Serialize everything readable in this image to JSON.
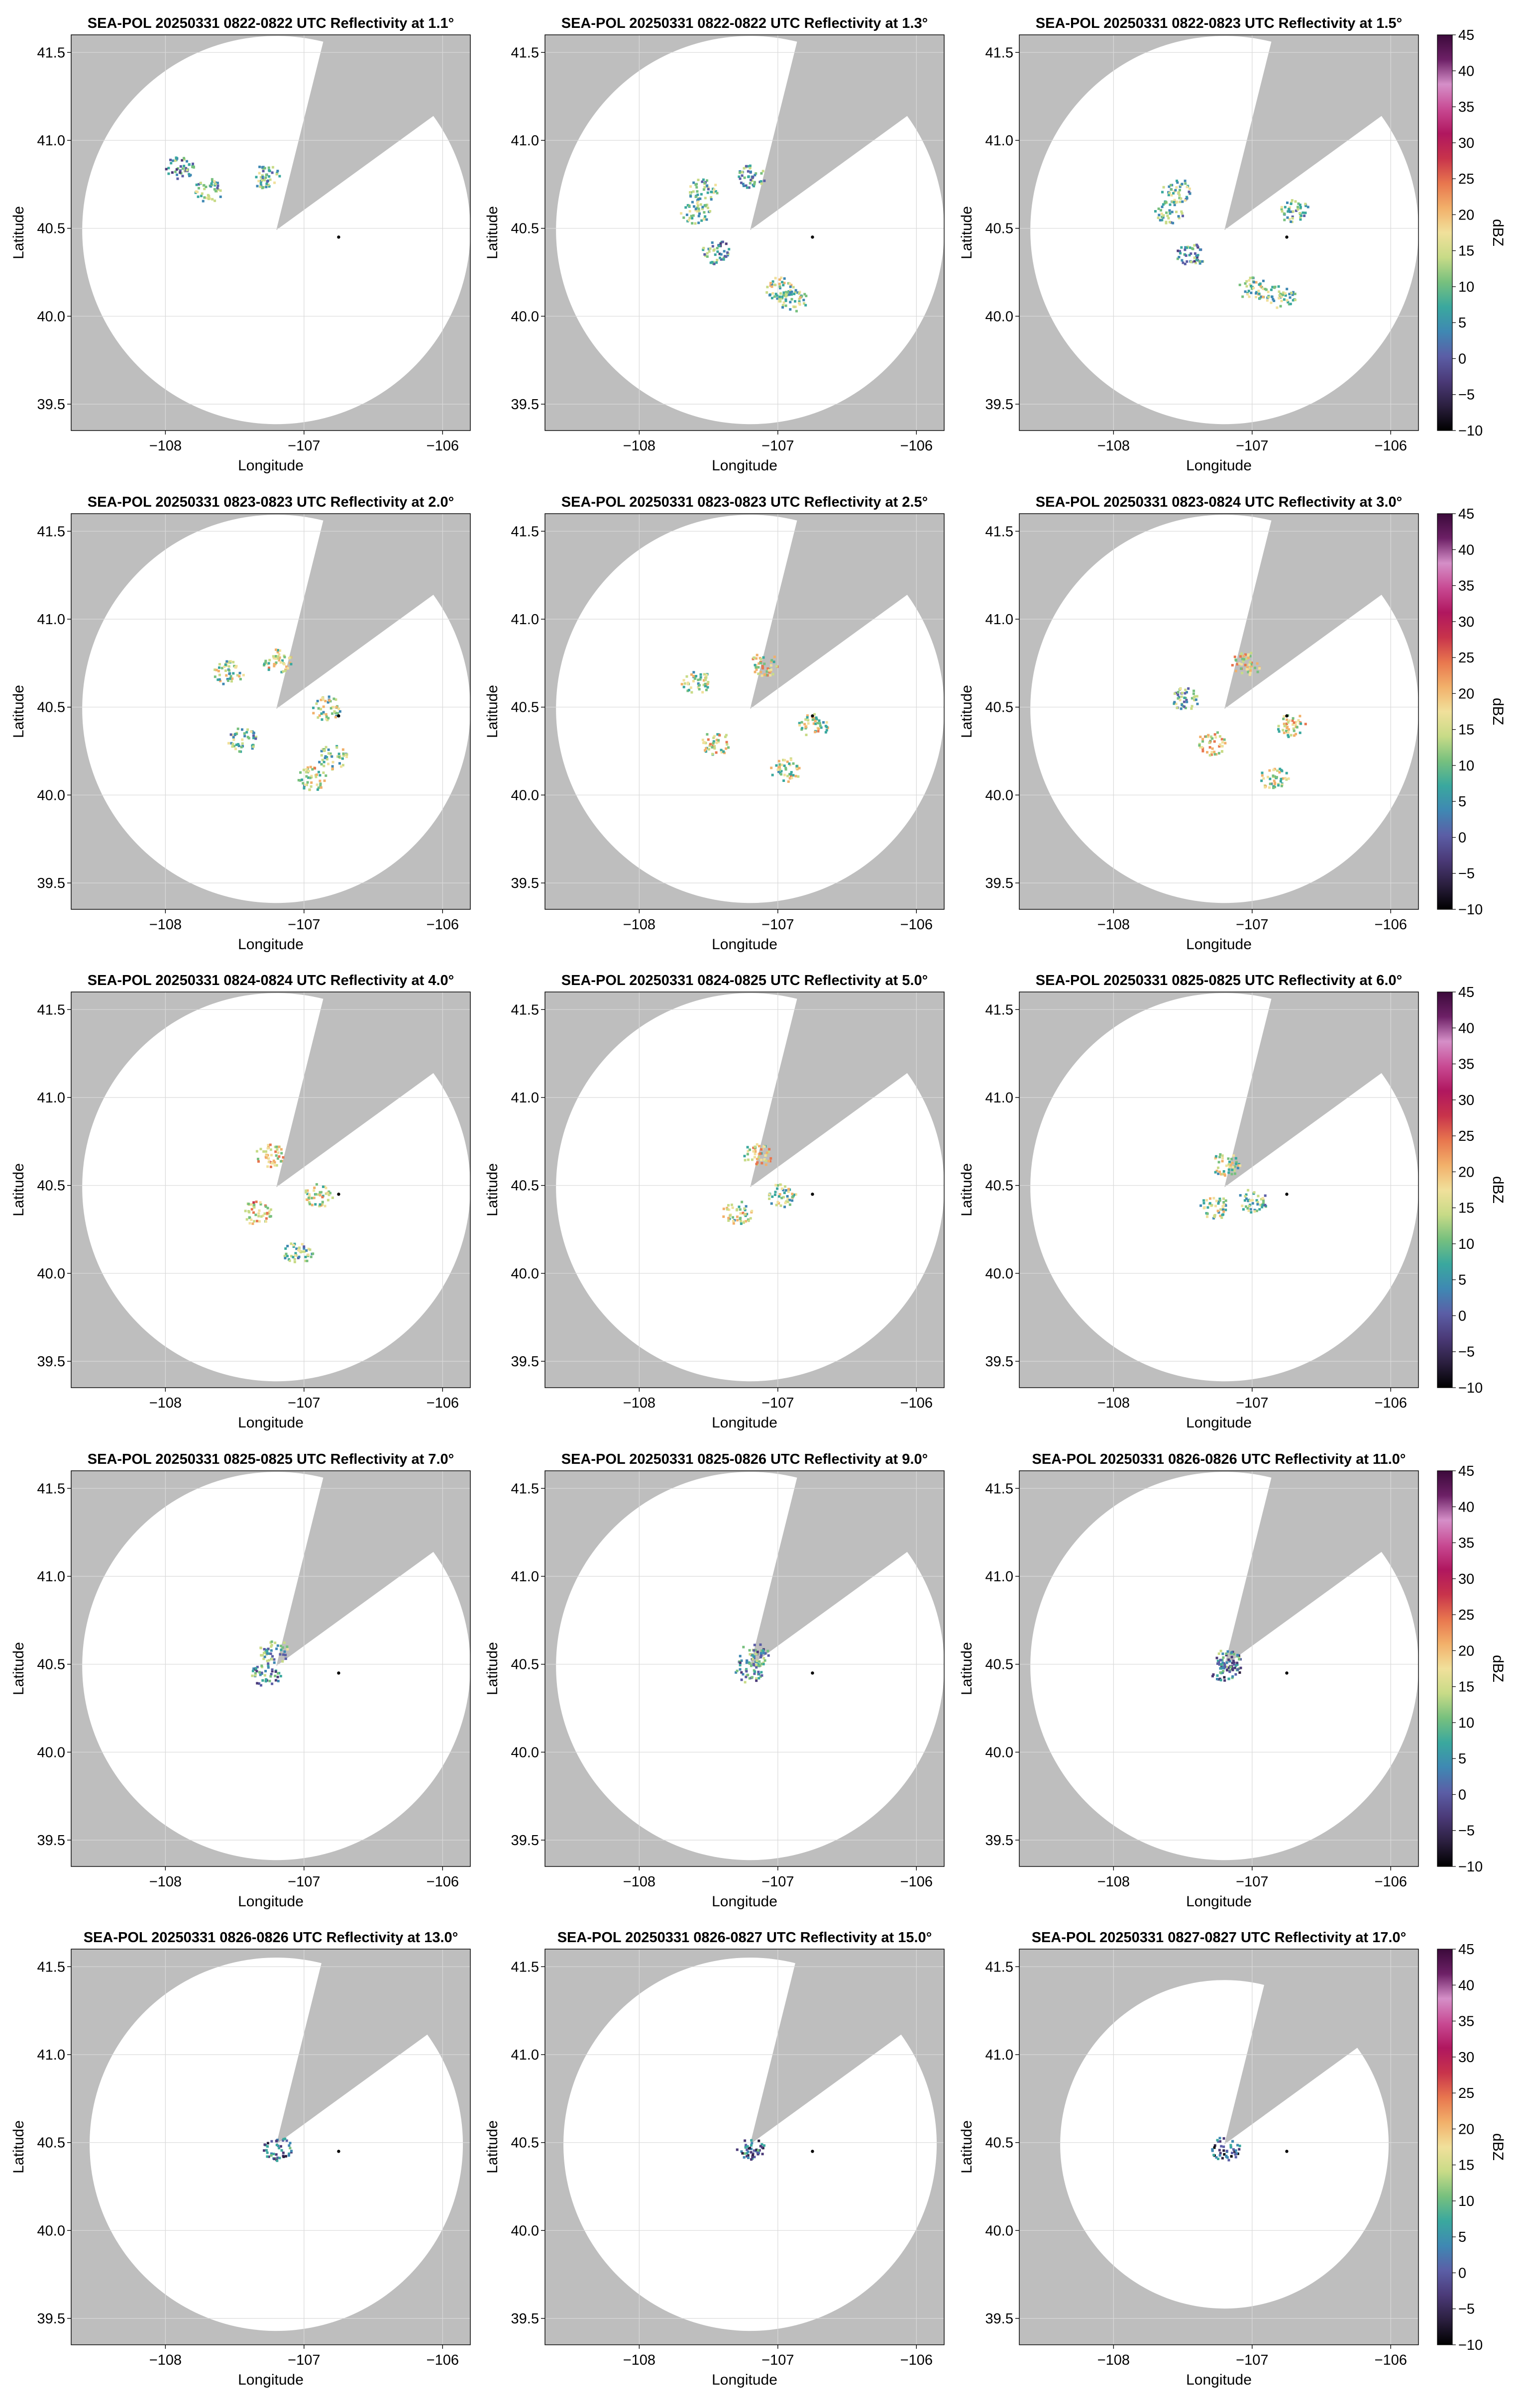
{
  "figure": {
    "colorbar": {
      "label": "dBZ",
      "range": [
        -10,
        45
      ],
      "ticks": [
        "−10",
        "−5",
        "0",
        "5",
        "10",
        "15",
        "20",
        "25",
        "30",
        "35",
        "40",
        "45"
      ],
      "colormap": [
        "#000000",
        "#2b1f3f",
        "#4b3a78",
        "#5b5ea6",
        "#3f88b3",
        "#3aa89e",
        "#77c07e",
        "#c8db87",
        "#f1e09b",
        "#f2b06a",
        "#e8764e",
        "#c8334b",
        "#b0175f",
        "#c84a93",
        "#d58fc8",
        "#6d2066",
        "#3b0a3b"
      ]
    },
    "axes_common": {
      "xlabel": "Longitude",
      "ylabel": "Latitude",
      "xlim": [
        -108.68,
        -105.8
      ],
      "ylim": [
        39.35,
        41.6
      ],
      "xticks": [
        -108,
        -107,
        -106
      ],
      "xtick_labels": [
        "−108",
        "−107",
        "−106"
      ],
      "yticks": [
        39.5,
        40.0,
        40.5,
        41.0,
        41.5
      ],
      "ytick_labels": [
        "39.5",
        "40.0",
        "40.5",
        "41.0",
        "41.5"
      ],
      "grid": true,
      "background_color": "#bebebe",
      "radar_site": {
        "lon": -107.2,
        "lat": 40.49
      },
      "marker_point": {
        "lon": -106.75,
        "lat": 40.45
      }
    },
    "panels": [
      {
        "title": "SEA-POL 20250331 0822-0822 UTC Reflectivity at 1.1°"
      },
      {
        "title": "SEA-POL 20250331 0822-0822 UTC Reflectivity at 1.3°"
      },
      {
        "title": "SEA-POL 20250331 0822-0823 UTC Reflectivity at 1.5°"
      },
      {
        "title": "SEA-POL 20250331 0823-0823 UTC Reflectivity at 2.0°"
      },
      {
        "title": "SEA-POL 20250331 0823-0823 UTC Reflectivity at 2.5°"
      },
      {
        "title": "SEA-POL 20250331 0823-0824 UTC Reflectivity at 3.0°"
      },
      {
        "title": "SEA-POL 20250331 0824-0824 UTC Reflectivity at 4.0°"
      },
      {
        "title": "SEA-POL 20250331 0824-0825 UTC Reflectivity at 5.0°"
      },
      {
        "title": "SEA-POL 20250331 0825-0825 UTC Reflectivity at 6.0°"
      },
      {
        "title": "SEA-POL 20250331 0825-0825 UTC Reflectivity at 7.0°"
      },
      {
        "title": "SEA-POL 20250331 0825-0826 UTC Reflectivity at 9.0°"
      },
      {
        "title": "SEA-POL 20250331 0826-0826 UTC Reflectivity at 11.0°"
      },
      {
        "title": "SEA-POL 20250331 0826-0826 UTC Reflectivity at 13.0°"
      },
      {
        "title": "SEA-POL 20250331 0826-0827 UTC Reflectivity at 15.0°"
      },
      {
        "title": "SEA-POL 20250331 0827-0827 UTC Reflectivity at 17.0°"
      }
    ]
  },
  "chart_data": {
    "type": "heatmap",
    "title": "",
    "xlabel": "Longitude",
    "ylabel": "Latitude",
    "xlim": [
      -108.68,
      -105.8
    ],
    "ylim": [
      39.35,
      41.6
    ],
    "colorbar_label": "dBZ",
    "value_range": [
      -10,
      45
    ],
    "colorbar_ticks": [
      -10,
      -5,
      0,
      5,
      10,
      15,
      20,
      25,
      30,
      35,
      40,
      45
    ],
    "note_units": "reflectivity values in dBZ",
    "panels": [
      {
        "elevation": "1.1°",
        "time": "0822-0822 UTC",
        "echoes": [
          {
            "lon": -107.7,
            "lat": 40.72,
            "dbz": 10
          },
          {
            "lon": -107.28,
            "lat": 40.8,
            "dbz": 8
          },
          {
            "lon": -107.9,
            "lat": 40.85,
            "dbz": 6
          }
        ]
      },
      {
        "elevation": "1.3°",
        "time": "0822-0822 UTC",
        "echoes": [
          {
            "lon": -107.55,
            "lat": 40.72,
            "dbz": 10
          },
          {
            "lon": -107.6,
            "lat": 40.6,
            "dbz": 9
          },
          {
            "lon": -107.2,
            "lat": 40.8,
            "dbz": 8
          },
          {
            "lon": -107.0,
            "lat": 40.16,
            "dbz": 12
          },
          {
            "lon": -106.9,
            "lat": 40.1,
            "dbz": 11
          },
          {
            "lon": -107.45,
            "lat": 40.37,
            "dbz": 6
          }
        ]
      },
      {
        "elevation": "1.5°",
        "time": "0822-0823 UTC",
        "echoes": [
          {
            "lon": -107.55,
            "lat": 40.72,
            "dbz": 10
          },
          {
            "lon": -107.6,
            "lat": 40.6,
            "dbz": 9
          },
          {
            "lon": -107.0,
            "lat": 40.16,
            "dbz": 12
          },
          {
            "lon": -106.8,
            "lat": 40.12,
            "dbz": 11
          },
          {
            "lon": -106.7,
            "lat": 40.6,
            "dbz": 9
          },
          {
            "lon": -107.45,
            "lat": 40.35,
            "dbz": 6
          }
        ]
      },
      {
        "elevation": "2.0°",
        "time": "0823-0823 UTC",
        "echoes": [
          {
            "lon": -107.55,
            "lat": 40.7,
            "dbz": 12
          },
          {
            "lon": -107.2,
            "lat": 40.77,
            "dbz": 14
          },
          {
            "lon": -106.85,
            "lat": 40.5,
            "dbz": 12
          },
          {
            "lon": -107.45,
            "lat": 40.32,
            "dbz": 10
          },
          {
            "lon": -106.95,
            "lat": 40.1,
            "dbz": 14
          },
          {
            "lon": -106.8,
            "lat": 40.22,
            "dbz": 12
          }
        ]
      },
      {
        "elevation": "2.5°",
        "time": "0823-0823 UTC",
        "echoes": [
          {
            "lon": -107.45,
            "lat": 40.3,
            "dbz": 16
          },
          {
            "lon": -106.75,
            "lat": 40.4,
            "dbz": 14
          },
          {
            "lon": -107.1,
            "lat": 40.75,
            "dbz": 16
          },
          {
            "lon": -107.6,
            "lat": 40.65,
            "dbz": 12
          },
          {
            "lon": -106.95,
            "lat": 40.15,
            "dbz": 14
          }
        ]
      },
      {
        "elevation": "3.0°",
        "time": "0823-0824 UTC",
        "echoes": [
          {
            "lon": -107.3,
            "lat": 40.3,
            "dbz": 17
          },
          {
            "lon": -106.72,
            "lat": 40.4,
            "dbz": 15
          },
          {
            "lon": -107.05,
            "lat": 40.75,
            "dbz": 18
          },
          {
            "lon": -107.5,
            "lat": 40.55,
            "dbz": 8
          },
          {
            "lon": -106.85,
            "lat": 40.1,
            "dbz": 13
          }
        ]
      },
      {
        "elevation": "4.0°",
        "time": "0824-0824 UTC",
        "echoes": [
          {
            "lon": -107.35,
            "lat": 40.35,
            "dbz": 18
          },
          {
            "lon": -107.25,
            "lat": 40.68,
            "dbz": 18
          },
          {
            "lon": -106.9,
            "lat": 40.45,
            "dbz": 14
          },
          {
            "lon": -107.05,
            "lat": 40.12,
            "dbz": 10
          }
        ]
      },
      {
        "elevation": "5.0°",
        "time": "0824-0825 UTC",
        "echoes": [
          {
            "lon": -107.3,
            "lat": 40.35,
            "dbz": 14
          },
          {
            "lon": -107.15,
            "lat": 40.68,
            "dbz": 16
          },
          {
            "lon": -106.98,
            "lat": 40.45,
            "dbz": 12
          }
        ]
      },
      {
        "elevation": "6.0°",
        "time": "0825-0825 UTC",
        "echoes": [
          {
            "lon": -107.28,
            "lat": 40.38,
            "dbz": 12
          },
          {
            "lon": -107.2,
            "lat": 40.62,
            "dbz": 14
          },
          {
            "lon": -107.0,
            "lat": 40.42,
            "dbz": 10
          }
        ]
      },
      {
        "elevation": "7.0°",
        "time": "0825-0825 UTC",
        "echoes": [
          {
            "lon": -107.28,
            "lat": 40.45,
            "dbz": 6
          },
          {
            "lon": -107.22,
            "lat": 40.58,
            "dbz": 8
          }
        ]
      },
      {
        "elevation": "9.0°",
        "time": "0825-0826 UTC",
        "echoes": [
          {
            "lon": -107.22,
            "lat": 40.47,
            "dbz": 5
          },
          {
            "lon": -107.18,
            "lat": 40.56,
            "dbz": 7
          }
        ]
      },
      {
        "elevation": "11.0°",
        "time": "0826-0826 UTC",
        "echoes": [
          {
            "lon": -107.2,
            "lat": 40.47,
            "dbz": 3
          },
          {
            "lon": -107.17,
            "lat": 40.53,
            "dbz": 4
          }
        ]
      },
      {
        "elevation": "13.0°",
        "time": "0826-0826 UTC",
        "echoes": [
          {
            "lon": -107.2,
            "lat": 40.47,
            "dbz": 2
          }
        ]
      },
      {
        "elevation": "15.0°",
        "time": "0826-0827 UTC",
        "echoes": [
          {
            "lon": -107.2,
            "lat": 40.47,
            "dbz": 1
          }
        ]
      },
      {
        "elevation": "17.0°",
        "time": "0827-0827 UTC",
        "echoes": [
          {
            "lon": -107.2,
            "lat": 40.47,
            "dbz": 0
          }
        ]
      }
    ]
  }
}
